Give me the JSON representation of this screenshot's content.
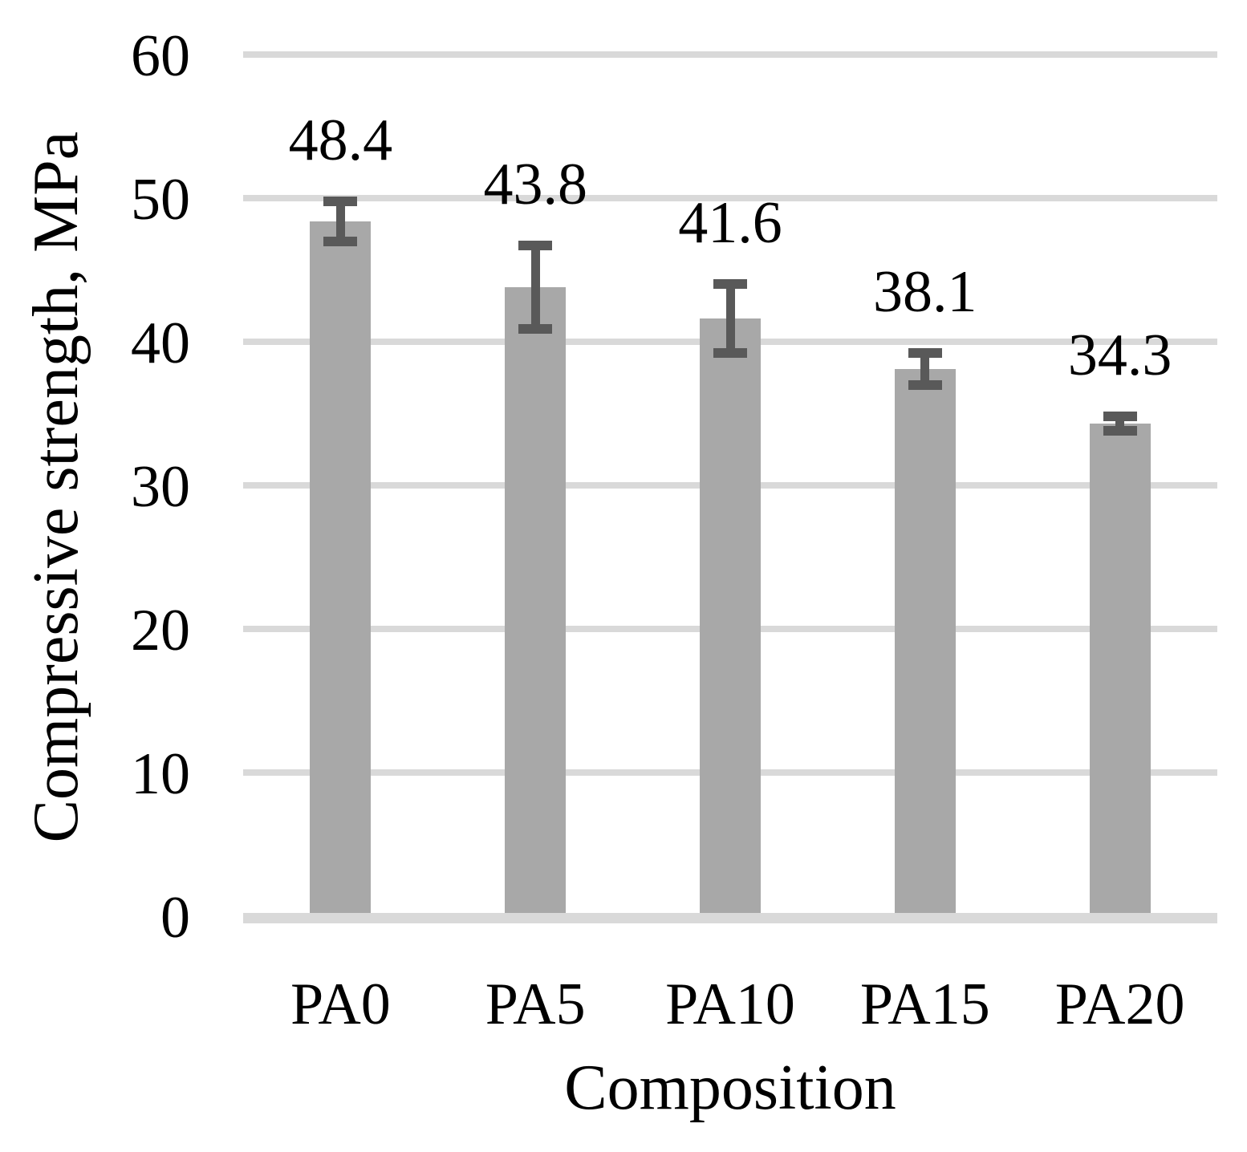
{
  "chart_data": {
    "type": "bar",
    "title": "",
    "categories": [
      "PA0",
      "PA5",
      "PA10",
      "PA15",
      "PA20"
    ],
    "series": [
      {
        "name": "Compressive strength",
        "values": [
          48.4,
          43.8,
          41.6,
          38.1,
          34.3
        ],
        "error_plus": [
          1.4,
          2.9,
          2.4,
          1.1,
          0.5
        ],
        "error_minus": [
          1.4,
          2.9,
          2.4,
          1.1,
          0.5
        ]
      }
    ],
    "data_labels": [
      "48.4",
      "43.8",
      "41.6",
      "38.1",
      "34.3"
    ],
    "xlabel": "Composition",
    "ylabel": "Compressive strength, MPa",
    "ylim": [
      0,
      60
    ],
    "yticks": [
      0,
      10,
      20,
      30,
      40,
      50,
      60
    ],
    "grid": "horizontal-only",
    "legend": "none",
    "colors": {
      "bar": "#A8A8A8",
      "error_bar": "#595959",
      "gridline": "#D9D9D9",
      "axis_line": "#D9D9D9",
      "text": "#000000",
      "background": "#FFFFFF"
    }
  }
}
